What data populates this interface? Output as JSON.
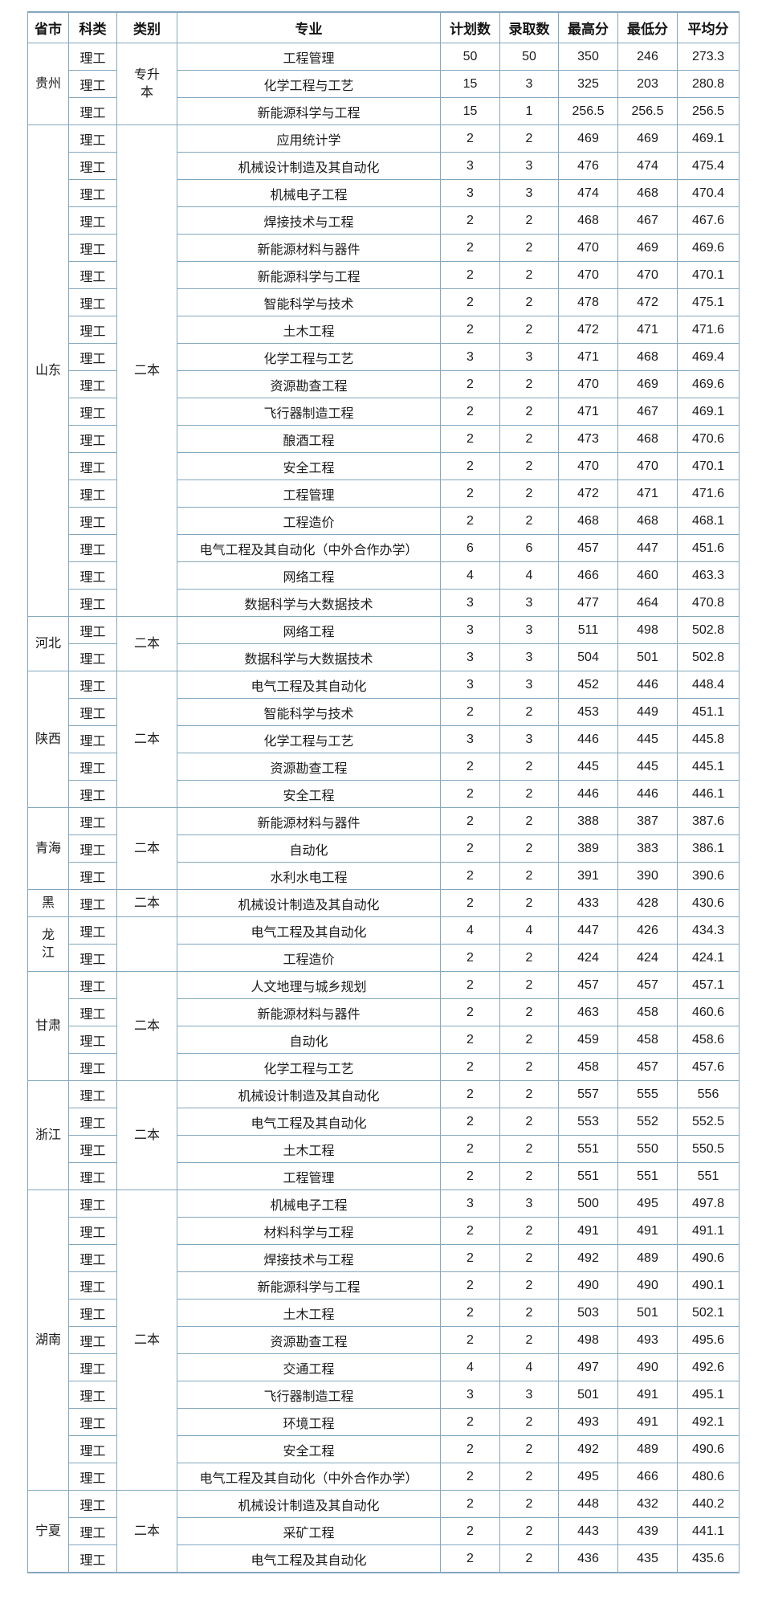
{
  "table": {
    "border_color": "#84a7bf",
    "text_color": "#1b1b1b",
    "background_color": "#ffffff",
    "headers": [
      "省市",
      "科类",
      "类别",
      "专业",
      "计划数",
      "录取数",
      "最高分",
      "最低分",
      "平均分"
    ],
    "groups": [
      {
        "province": "贵州",
        "category": "专升\n本",
        "rows": [
          {
            "subject": "理工",
            "major": "工程管理",
            "plan": "50",
            "admitted": "50",
            "max": "350",
            "min": "246",
            "avg": "273.3"
          },
          {
            "subject": "理工",
            "major": "化学工程与工艺",
            "plan": "15",
            "admitted": "3",
            "max": "325",
            "min": "203",
            "avg": "280.8"
          },
          {
            "subject": "理工",
            "major": "新能源科学与工程",
            "plan": "15",
            "admitted": "1",
            "max": "256.5",
            "min": "256.5",
            "avg": "256.5"
          }
        ]
      },
      {
        "province": "山东",
        "category": "二本",
        "rows": [
          {
            "subject": "理工",
            "major": "应用统计学",
            "plan": "2",
            "admitted": "2",
            "max": "469",
            "min": "469",
            "avg": "469.1"
          },
          {
            "subject": "理工",
            "major": "机械设计制造及其自动化",
            "plan": "3",
            "admitted": "3",
            "max": "476",
            "min": "474",
            "avg": "475.4"
          },
          {
            "subject": "理工",
            "major": "机械电子工程",
            "plan": "3",
            "admitted": "3",
            "max": "474",
            "min": "468",
            "avg": "470.4"
          },
          {
            "subject": "理工",
            "major": "焊接技术与工程",
            "plan": "2",
            "admitted": "2",
            "max": "468",
            "min": "467",
            "avg": "467.6"
          },
          {
            "subject": "理工",
            "major": "新能源材料与器件",
            "plan": "2",
            "admitted": "2",
            "max": "470",
            "min": "469",
            "avg": "469.6"
          },
          {
            "subject": "理工",
            "major": "新能源科学与工程",
            "plan": "2",
            "admitted": "2",
            "max": "470",
            "min": "470",
            "avg": "470.1"
          },
          {
            "subject": "理工",
            "major": "智能科学与技术",
            "plan": "2",
            "admitted": "2",
            "max": "478",
            "min": "472",
            "avg": "475.1"
          },
          {
            "subject": "理工",
            "major": "土木工程",
            "plan": "2",
            "admitted": "2",
            "max": "472",
            "min": "471",
            "avg": "471.6"
          },
          {
            "subject": "理工",
            "major": "化学工程与工艺",
            "plan": "3",
            "admitted": "3",
            "max": "471",
            "min": "468",
            "avg": "469.4"
          },
          {
            "subject": "理工",
            "major": "资源勘查工程",
            "plan": "2",
            "admitted": "2",
            "max": "470",
            "min": "469",
            "avg": "469.6"
          },
          {
            "subject": "理工",
            "major": "飞行器制造工程",
            "plan": "2",
            "admitted": "2",
            "max": "471",
            "min": "467",
            "avg": "469.1"
          },
          {
            "subject": "理工",
            "major": "酿酒工程",
            "plan": "2",
            "admitted": "2",
            "max": "473",
            "min": "468",
            "avg": "470.6"
          },
          {
            "subject": "理工",
            "major": "安全工程",
            "plan": "2",
            "admitted": "2",
            "max": "470",
            "min": "470",
            "avg": "470.1"
          },
          {
            "subject": "理工",
            "major": "工程管理",
            "plan": "2",
            "admitted": "2",
            "max": "472",
            "min": "471",
            "avg": "471.6"
          },
          {
            "subject": "理工",
            "major": "工程造价",
            "plan": "2",
            "admitted": "2",
            "max": "468",
            "min": "468",
            "avg": "468.1"
          },
          {
            "subject": "理工",
            "major": "电气工程及其自动化（中外合作办学）",
            "plan": "6",
            "admitted": "6",
            "max": "457",
            "min": "447",
            "avg": "451.6"
          },
          {
            "subject": "理工",
            "major": "网络工程",
            "plan": "4",
            "admitted": "4",
            "max": "466",
            "min": "460",
            "avg": "463.3"
          },
          {
            "subject": "理工",
            "major": "数据科学与大数据技术",
            "plan": "3",
            "admitted": "3",
            "max": "477",
            "min": "464",
            "avg": "470.8"
          }
        ]
      },
      {
        "province": "河北",
        "category": "二本",
        "rows": [
          {
            "subject": "理工",
            "major": "网络工程",
            "plan": "3",
            "admitted": "3",
            "max": "511",
            "min": "498",
            "avg": "502.8"
          },
          {
            "subject": "理工",
            "major": "数据科学与大数据技术",
            "plan": "3",
            "admitted": "3",
            "max": "504",
            "min": "501",
            "avg": "502.8"
          }
        ]
      },
      {
        "province": "陕西",
        "category": "二本",
        "rows": [
          {
            "subject": "理工",
            "major": "电气工程及其自动化",
            "plan": "3",
            "admitted": "3",
            "max": "452",
            "min": "446",
            "avg": "448.4"
          },
          {
            "subject": "理工",
            "major": "智能科学与技术",
            "plan": "2",
            "admitted": "2",
            "max": "453",
            "min": "449",
            "avg": "451.1"
          },
          {
            "subject": "理工",
            "major": "化学工程与工艺",
            "plan": "3",
            "admitted": "3",
            "max": "446",
            "min": "445",
            "avg": "445.8"
          },
          {
            "subject": "理工",
            "major": "资源勘查工程",
            "plan": "2",
            "admitted": "2",
            "max": "445",
            "min": "445",
            "avg": "445.1"
          },
          {
            "subject": "理工",
            "major": "安全工程",
            "plan": "2",
            "admitted": "2",
            "max": "446",
            "min": "446",
            "avg": "446.1"
          }
        ]
      },
      {
        "province": "青海",
        "category": "二本",
        "rows": [
          {
            "subject": "理工",
            "major": "新能源材料与器件",
            "plan": "2",
            "admitted": "2",
            "max": "388",
            "min": "387",
            "avg": "387.6"
          },
          {
            "subject": "理工",
            "major": "自动化",
            "plan": "2",
            "admitted": "2",
            "max": "389",
            "min": "383",
            "avg": "386.1"
          },
          {
            "subject": "理工",
            "major": "水利水电工程",
            "plan": "2",
            "admitted": "2",
            "max": "391",
            "min": "390",
            "avg": "390.6"
          }
        ]
      },
      {
        "province": "黑",
        "category": "二本",
        "rows": [
          {
            "subject": "理工",
            "major": "机械设计制造及其自动化",
            "plan": "2",
            "admitted": "2",
            "max": "433",
            "min": "428",
            "avg": "430.6"
          }
        ]
      },
      {
        "province": "龙\n江",
        "category": "",
        "rows": [
          {
            "subject": "理工",
            "major": "电气工程及其自动化",
            "plan": "4",
            "admitted": "4",
            "max": "447",
            "min": "426",
            "avg": "434.3"
          },
          {
            "subject": "理工",
            "major": "工程造价",
            "plan": "2",
            "admitted": "2",
            "max": "424",
            "min": "424",
            "avg": "424.1"
          }
        ]
      },
      {
        "province": "甘肃",
        "category": "二本",
        "rows": [
          {
            "subject": "理工",
            "major": "人文地理与城乡规划",
            "plan": "2",
            "admitted": "2",
            "max": "457",
            "min": "457",
            "avg": "457.1"
          },
          {
            "subject": "理工",
            "major": "新能源材料与器件",
            "plan": "2",
            "admitted": "2",
            "max": "463",
            "min": "458",
            "avg": "460.6"
          },
          {
            "subject": "理工",
            "major": "自动化",
            "plan": "2",
            "admitted": "2",
            "max": "459",
            "min": "458",
            "avg": "458.6"
          },
          {
            "subject": "理工",
            "major": "化学工程与工艺",
            "plan": "2",
            "admitted": "2",
            "max": "458",
            "min": "457",
            "avg": "457.6"
          }
        ]
      },
      {
        "province": "浙江",
        "category": "二本",
        "rows": [
          {
            "subject": "理工",
            "major": "机械设计制造及其自动化",
            "plan": "2",
            "admitted": "2",
            "max": "557",
            "min": "555",
            "avg": "556"
          },
          {
            "subject": "理工",
            "major": "电气工程及其自动化",
            "plan": "2",
            "admitted": "2",
            "max": "553",
            "min": "552",
            "avg": "552.5"
          },
          {
            "subject": "理工",
            "major": "土木工程",
            "plan": "2",
            "admitted": "2",
            "max": "551",
            "min": "550",
            "avg": "550.5"
          },
          {
            "subject": "理工",
            "major": "工程管理",
            "plan": "2",
            "admitted": "2",
            "max": "551",
            "min": "551",
            "avg": "551"
          }
        ]
      },
      {
        "province": "湖南",
        "category": "二本",
        "rows": [
          {
            "subject": "理工",
            "major": "机械电子工程",
            "plan": "3",
            "admitted": "3",
            "max": "500",
            "min": "495",
            "avg": "497.8"
          },
          {
            "subject": "理工",
            "major": "材料科学与工程",
            "plan": "2",
            "admitted": "2",
            "max": "491",
            "min": "491",
            "avg": "491.1"
          },
          {
            "subject": "理工",
            "major": "焊接技术与工程",
            "plan": "2",
            "admitted": "2",
            "max": "492",
            "min": "489",
            "avg": "490.6"
          },
          {
            "subject": "理工",
            "major": "新能源科学与工程",
            "plan": "2",
            "admitted": "2",
            "max": "490",
            "min": "490",
            "avg": "490.1"
          },
          {
            "subject": "理工",
            "major": "土木工程",
            "plan": "2",
            "admitted": "2",
            "max": "503",
            "min": "501",
            "avg": "502.1"
          },
          {
            "subject": "理工",
            "major": "资源勘查工程",
            "plan": "2",
            "admitted": "2",
            "max": "498",
            "min": "493",
            "avg": "495.6"
          },
          {
            "subject": "理工",
            "major": "交通工程",
            "plan": "4",
            "admitted": "4",
            "max": "497",
            "min": "490",
            "avg": "492.6"
          },
          {
            "subject": "理工",
            "major": "飞行器制造工程",
            "plan": "3",
            "admitted": "3",
            "max": "501",
            "min": "491",
            "avg": "495.1"
          },
          {
            "subject": "理工",
            "major": "环境工程",
            "plan": "2",
            "admitted": "2",
            "max": "493",
            "min": "491",
            "avg": "492.1"
          },
          {
            "subject": "理工",
            "major": "安全工程",
            "plan": "2",
            "admitted": "2",
            "max": "492",
            "min": "489",
            "avg": "490.6"
          },
          {
            "subject": "理工",
            "major": "电气工程及其自动化（中外合作办学）",
            "plan": "2",
            "admitted": "2",
            "max": "495",
            "min": "466",
            "avg": "480.6"
          }
        ]
      },
      {
        "province": "宁夏",
        "category": "二本",
        "rows": [
          {
            "subject": "理工",
            "major": "机械设计制造及其自动化",
            "plan": "2",
            "admitted": "2",
            "max": "448",
            "min": "432",
            "avg": "440.2"
          },
          {
            "subject": "理工",
            "major": "采矿工程",
            "plan": "2",
            "admitted": "2",
            "max": "443",
            "min": "439",
            "avg": "441.1"
          },
          {
            "subject": "理工",
            "major": "电气工程及其自动化",
            "plan": "2",
            "admitted": "2",
            "max": "436",
            "min": "435",
            "avg": "435.6"
          }
        ]
      }
    ]
  }
}
